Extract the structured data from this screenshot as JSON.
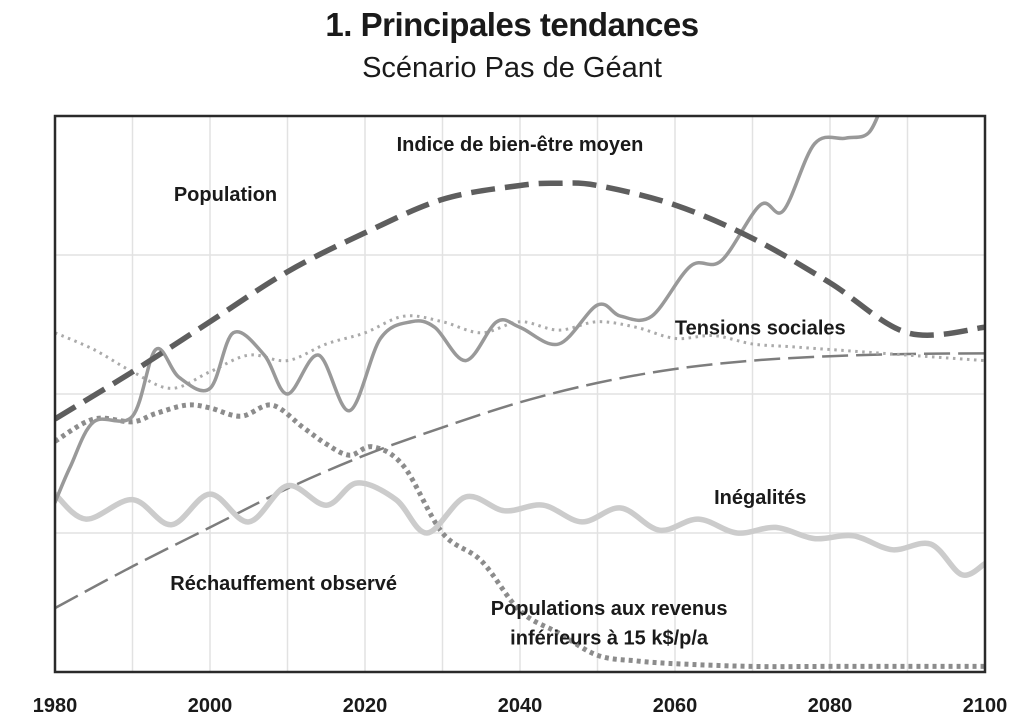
{
  "chart_data": {
    "type": "line",
    "title": "1. Principales tendances",
    "subtitle": "Scénario Pas de Géant",
    "xlabel": "",
    "ylabel": "",
    "xlim": [
      1980,
      2100
    ],
    "ylim": [
      0,
      100
    ],
    "x_ticks": [
      1980,
      2000,
      2020,
      2040,
      2060,
      2080,
      2100
    ],
    "grid": true,
    "legend": "inline labels",
    "series": [
      {
        "name": "Population",
        "style": "dashed-thick",
        "color": "#5e5e5e",
        "x": [
          1980,
          1990,
          2000,
          2010,
          2020,
          2030,
          2040,
          2045,
          2050,
          2060,
          2070,
          2080,
          2090,
          2100
        ],
        "y": [
          45.5,
          54,
          63,
          72,
          79,
          85,
          87.5,
          87.9,
          87.5,
          84,
          78,
          70,
          61,
          62
        ]
      },
      {
        "name": "Indice de bien-être moyen",
        "style": "solid",
        "color": "#999999",
        "x": [
          1980,
          1982,
          1985,
          1990,
          1993,
          1996,
          2000,
          2003,
          2007,
          2010,
          2014,
          2018,
          2022,
          2026,
          2029,
          2033,
          2037,
          2040,
          2045,
          2050,
          2053,
          2057,
          2062,
          2066,
          2071,
          2074,
          2078,
          2082,
          2085,
          2087
        ],
        "y": [
          30.5,
          37,
          45,
          46,
          58,
          53,
          51,
          61,
          57,
          50,
          57,
          47,
          60,
          63,
          62,
          56,
          63,
          62,
          59,
          66,
          64,
          64,
          73,
          74,
          84,
          83,
          95,
          96,
          97,
          103
        ]
      },
      {
        "name": "Tensions sociales",
        "style": "dotted",
        "color": "#aaaaaa",
        "x": [
          1980,
          1985,
          1990,
          1995,
          2000,
          2005,
          2010,
          2015,
          2020,
          2025,
          2030,
          2035,
          2040,
          2045,
          2050,
          2055,
          2060,
          2065,
          2070,
          2075,
          2080,
          2085,
          2090,
          2095,
          2100
        ],
        "y": [
          61,
          58,
          54,
          51,
          54,
          57,
          56,
          59,
          61,
          64,
          63,
          61,
          63,
          61.5,
          63,
          62,
          60,
          60.5,
          59,
          58.5,
          58,
          57.5,
          57,
          56.5,
          56
        ]
      },
      {
        "name": "Réchauffement observé",
        "style": "long-dash",
        "color": "#7d7d7d",
        "x": [
          1980,
          1990,
          2000,
          2010,
          2020,
          2030,
          2040,
          2050,
          2060,
          2070,
          2080,
          2090,
          2100
        ],
        "y": [
          11.5,
          19,
          26,
          33,
          39,
          44,
          48.5,
          52,
          54.5,
          56,
          56.8,
          57.2,
          57.3
        ]
      },
      {
        "name": "Inégalités",
        "style": "solid-thick",
        "color": "#cccccc",
        "x": [
          1980,
          1984,
          1990,
          1995,
          2000,
          2005,
          2010,
          2015,
          2019,
          2024,
          2028,
          2033,
          2038,
          2043,
          2048,
          2053,
          2058,
          2063,
          2068,
          2073,
          2078,
          2083,
          2088,
          2093,
          2097,
          2100
        ],
        "y": [
          32,
          27.5,
          31,
          26.5,
          32,
          27,
          33.5,
          30,
          34,
          31,
          25,
          31.5,
          29,
          30,
          27,
          29.5,
          25.5,
          27.5,
          25,
          26,
          24,
          24.5,
          22,
          23,
          17.5,
          19.5
        ]
      },
      {
        "name": "Populations aux revenus inférieurs à 15 k$/p/a",
        "style": "dotted-thick",
        "color": "#8c8c8c",
        "x": [
          1980,
          1985,
          1990,
          1993,
          1997,
          2000,
          2004,
          2008,
          2012,
          2015,
          2018,
          2021,
          2025,
          2030,
          2035,
          2040,
          2045,
          2050,
          2055,
          2060,
          2070,
          2080,
          2090,
          2100
        ],
        "y": [
          41.5,
          45.5,
          45,
          46.5,
          48,
          47.5,
          46,
          48,
          44,
          41,
          39,
          40.5,
          37,
          25,
          20,
          11,
          7,
          3,
          2,
          1.5,
          1,
          1,
          1,
          1
        ]
      }
    ],
    "annotations": [
      {
        "text": "Population",
        "x": 2002,
        "y": 86
      },
      {
        "text": "Indice de bien-être moyen",
        "x": 2040,
        "y": 95
      },
      {
        "text": "Tensions sociales",
        "x": 2071,
        "y": 62
      },
      {
        "text": "Inégalités",
        "x": 2071,
        "y": 31.5
      },
      {
        "text": "Réchauffement observé",
        "x": 2009.5,
        "y": 16
      },
      {
        "text": "Populations aux revenus",
        "x": 2051.5,
        "y": 11.5
      },
      {
        "text": "inférieurs à 15 k$/p/a",
        "x": 2051.5,
        "y": 6.2
      }
    ]
  }
}
